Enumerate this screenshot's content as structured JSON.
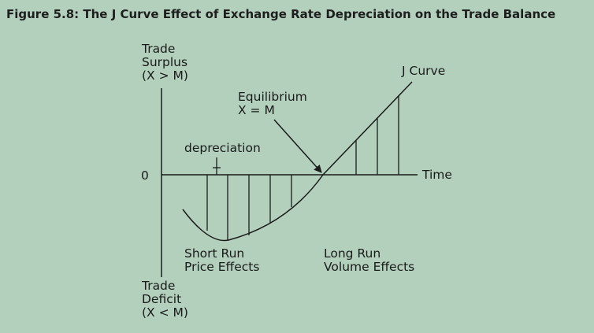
{
  "figure": {
    "title": "Figure 5.8: The J Curve Effect of Exchange Rate Depreciation on the Trade Balance"
  },
  "y_axis": {
    "top_label": [
      "Trade",
      "Surplus",
      "(X > M)"
    ],
    "bottom_label": [
      "Trade",
      "Deficit",
      "(X < M)"
    ],
    "zero_label": "0"
  },
  "x_axis": {
    "label": "Time"
  },
  "annotations": {
    "curve_label": "J Curve",
    "equilibrium": [
      "Equilibrium",
      "X = M"
    ],
    "depreciation": "depreciation",
    "short_run": [
      "Short Run",
      "Price Effects"
    ],
    "long_run": [
      "Long Run",
      "Volume Effects"
    ]
  },
  "colors": {
    "background": "#b3d0bd",
    "ink": "#1a1a1a"
  }
}
